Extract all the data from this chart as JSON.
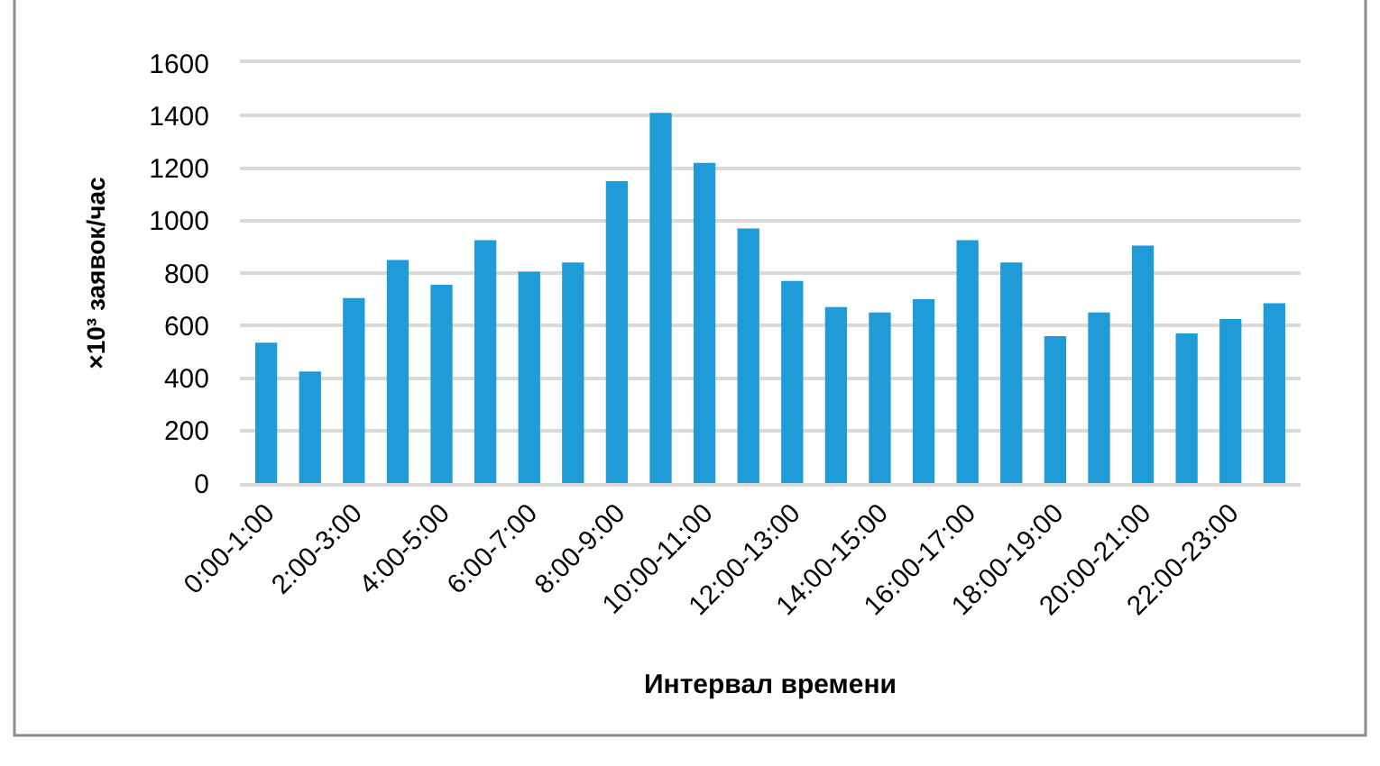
{
  "chart_data": {
    "type": "bar",
    "xlabel": "Интервал времени",
    "ylabel": "×10³ заявок/час",
    "categories": [
      "0:00-1:00",
      null,
      "2:00-3:00",
      null,
      "4:00-5:00",
      null,
      "6:00-7:00",
      null,
      "8:00-9:00",
      null,
      "10:00-11:00",
      null,
      "12:00-13:00",
      null,
      "14:00-15:00",
      null,
      "16:00-17:00",
      null,
      "18:00-19:00",
      null,
      "20:00-21:00",
      null,
      "22:00-23:00",
      null
    ],
    "values": [
      535,
      425,
      705,
      850,
      755,
      925,
      805,
      840,
      1150,
      1410,
      1220,
      970,
      770,
      670,
      650,
      700,
      925,
      840,
      560,
      650,
      905,
      570,
      625,
      685
    ],
    "color": "#1f9bd7",
    "ylim": [
      0,
      1600
    ],
    "yticks": [
      0,
      200,
      400,
      600,
      800,
      1000,
      1200,
      1400,
      1600
    ],
    "grid": "y"
  }
}
